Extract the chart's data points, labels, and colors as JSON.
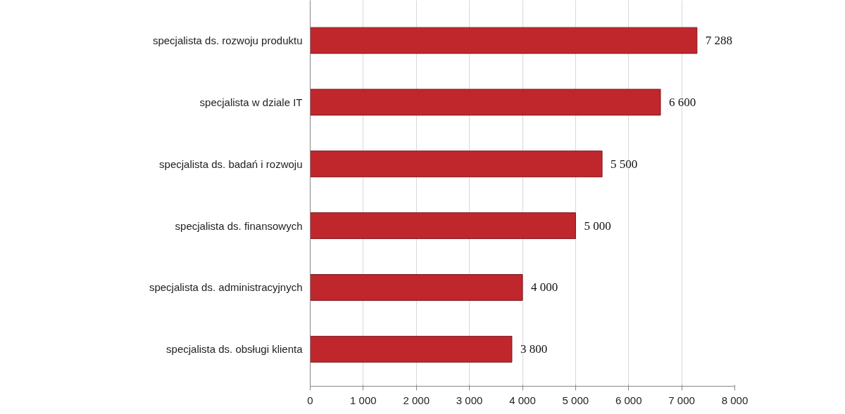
{
  "chart_data": {
    "type": "bar",
    "orientation": "horizontal",
    "categories": [
      "specjalista ds. rozwoju produktu",
      "specjalista w dziale IT",
      "specjalista ds. badań i rozwoju",
      "specjalista ds. finansowych",
      "specjalista ds. administracyjnych",
      "specjalista ds. obsługi klienta"
    ],
    "values": [
      7288,
      6600,
      5500,
      5000,
      4000,
      3800
    ],
    "value_labels": [
      "7 288",
      "6 600",
      "5 500",
      "5 000",
      "4 000",
      "3 800"
    ],
    "color": "#c0272d",
    "xlim": [
      0,
      8000
    ],
    "xticks": [
      0,
      {
        "value": 1000,
        "label": "1 000"
      },
      {
        "value": 2000,
        "label": "2 000"
      },
      {
        "value": 3000,
        "label": "3 000"
      },
      {
        "value": 4000,
        "label": "4 000"
      },
      {
        "value": 5000,
        "label": "5 000"
      },
      {
        "value": 6000,
        "label": "6 000"
      },
      {
        "value": 7000,
        "label": "7 000"
      },
      {
        "value": 8000,
        "label": "8 000"
      }
    ],
    "grid": "x"
  }
}
